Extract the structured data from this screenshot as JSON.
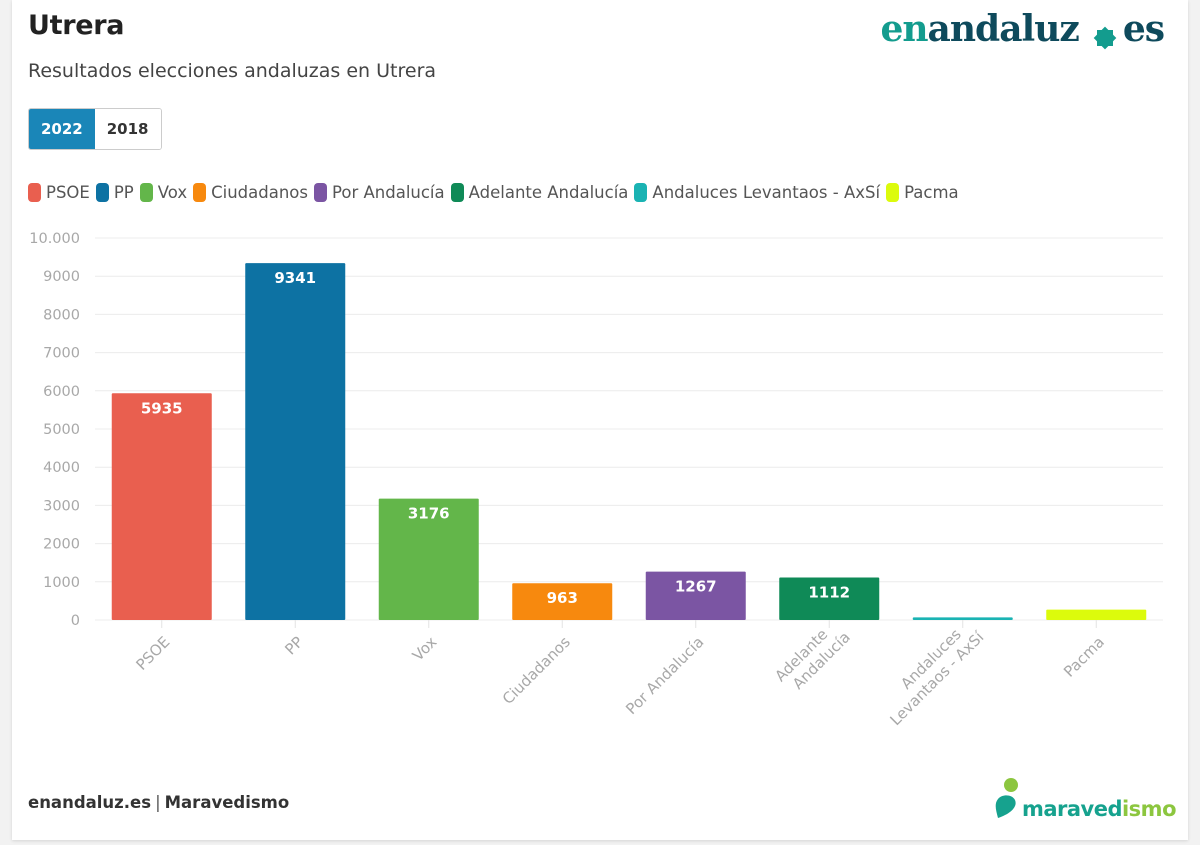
{
  "header": {
    "title": "Utrera",
    "subtitle": "Resultados elecciones andaluzas en Utrera",
    "logo": {
      "part1": "en",
      "part2": "andaluz",
      "part3": "es",
      "icon": "star-icon"
    }
  },
  "year_toggle": {
    "options": [
      {
        "label": "2022",
        "active": true
      },
      {
        "label": "2018",
        "active": false
      }
    ]
  },
  "footer": {
    "source1": "enandaluz.es",
    "separator": "|",
    "source2": "Maravedismo",
    "brand_logo": {
      "main": "maraved",
      "accent": "ismo"
    }
  },
  "colors": {
    "toggle_active": "#1a86b8",
    "logo_teal": "#139c8e",
    "logo_dark": "#0e4a5c"
  },
  "chart_data": {
    "type": "bar",
    "title": "Resultados elecciones andaluzas en Utrera",
    "xlabel": "",
    "ylabel": "",
    "ylim": [
      0,
      10000
    ],
    "yticks": [
      0,
      1000,
      2000,
      3000,
      4000,
      5000,
      6000,
      7000,
      8000,
      9000,
      10000
    ],
    "ytick_labels": [
      "0",
      "1000",
      "2000",
      "3000",
      "4000",
      "5000",
      "6000",
      "7000",
      "8000",
      "9000",
      "10.000"
    ],
    "grid": true,
    "legend_position": "top-left",
    "categories": [
      "PSOE",
      "PP",
      "Vox",
      "Ciudadanos",
      "Por Andalucía",
      "Adelante Andalucía",
      "Andaluces Levantaos - AxSí",
      "Pacma"
    ],
    "category_labels_lines": [
      [
        "PSOE"
      ],
      [
        "PP"
      ],
      [
        "Vox"
      ],
      [
        "Ciudadanos"
      ],
      [
        "Por Andalucía"
      ],
      [
        "Adelante",
        "Andalucía"
      ],
      [
        "Andaluces",
        "Levantaos - AxSí"
      ],
      [
        "Pacma"
      ]
    ],
    "values": [
      5935,
      9341,
      3176,
      963,
      1267,
      1112,
      70,
      270
    ],
    "data_labels": [
      "5935",
      "9341",
      "3176",
      "963",
      "1267",
      "1112",
      "",
      ""
    ],
    "colors": [
      "#e95f4f",
      "#0d72a3",
      "#63b64a",
      "#f7890e",
      "#7b55a3",
      "#0f8a57",
      "#1ab3b3",
      "#dcfb0c"
    ]
  }
}
